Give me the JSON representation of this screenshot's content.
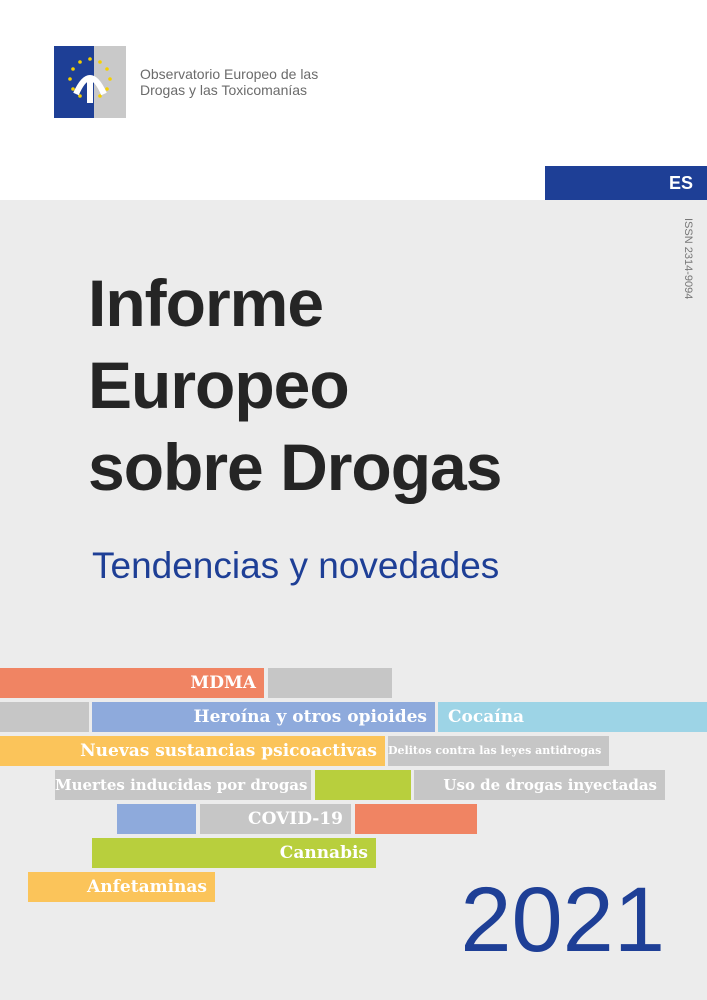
{
  "header": {
    "org_line1": "Observatorio Europeo de las",
    "org_line2": "Drogas y las Toxicomanías",
    "language": "ES"
  },
  "issn": "ISSN 2314-9094",
  "title": {
    "line1": "Informe",
    "line2": "Europeo",
    "line3": "sobre Drogas"
  },
  "subtitle": "Tendencias y novedades",
  "year": "2021",
  "colors": {
    "blue": "#1e3f96",
    "salmon": "#f08463",
    "grey": "#c6c6c6",
    "light_blue": "#8eaadc",
    "cyan": "#9dd4e6",
    "yellow": "#fbc45a",
    "green": "#b8cf3d"
  },
  "topics": [
    {
      "label": "MDMA",
      "color": "salmon"
    },
    {
      "label": "Heroína y otros opioides",
      "color": "light_blue"
    },
    {
      "label": "Cocaína",
      "color": "cyan"
    },
    {
      "label": "Nuevas sustancias psicoactivas",
      "color": "yellow"
    },
    {
      "label": "Delitos contra las leyes antidrogas",
      "color": "grey"
    },
    {
      "label": "Muertes inducidas por drogas",
      "color": "grey"
    },
    {
      "label": "Uso de drogas inyectadas",
      "color": "grey"
    },
    {
      "label": "COVID-19",
      "color": "grey"
    },
    {
      "label": "Cannabis",
      "color": "green"
    },
    {
      "label": "Anfetaminas",
      "color": "yellow"
    }
  ]
}
